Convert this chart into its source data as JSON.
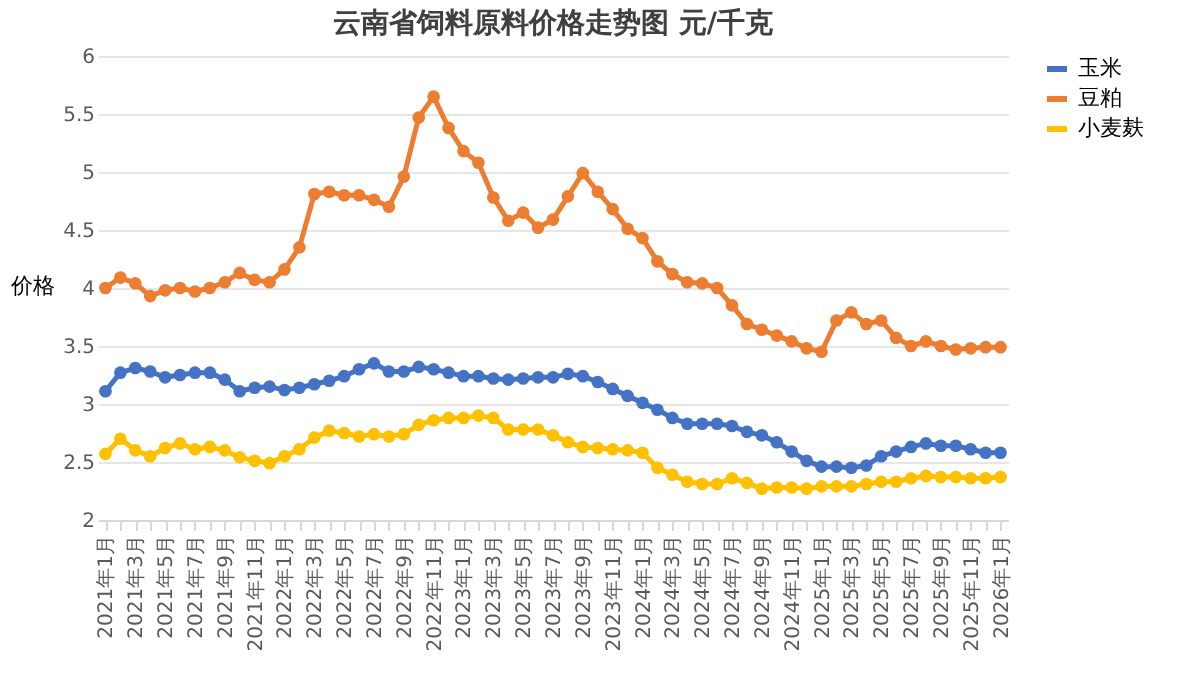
{
  "chart_data": {
    "type": "line",
    "title": "云南省饲料原料价格走势图    元/千克",
    "ylabel": "价格",
    "categories": [
      "2021年1月",
      null,
      "2021年3月",
      null,
      "2021年5月",
      null,
      "2021年7月",
      null,
      "2021年9月",
      null,
      "2021年11月",
      null,
      "2022年1月",
      null,
      "2022年3月",
      null,
      "2022年5月",
      null,
      "2022年7月",
      null,
      "2022年9月",
      null,
      "2022年11月",
      null,
      "2023年1月",
      null,
      "2023年3月",
      null,
      "2023年5月",
      null,
      "2023年7月",
      null,
      "2023年9月",
      null,
      "2023年11月",
      null,
      "2024年1月",
      null,
      "2024年3月",
      null,
      "2024年5月",
      null,
      "2024年7月",
      null,
      "2024年9月",
      null,
      "2024年11月",
      null,
      "2025年1月",
      null,
      "2025年3月",
      null,
      "2025年5月",
      null,
      "2025年7月",
      null,
      "2025年9月",
      null,
      "2025年11月",
      null,
      "2026年1月"
    ],
    "series": [
      {
        "name": "玉米",
        "color": "#4472c4",
        "values": [
          3.11,
          3.27,
          3.31,
          3.28,
          3.23,
          3.25,
          3.27,
          3.27,
          3.21,
          3.11,
          3.14,
          3.15,
          3.12,
          3.14,
          3.17,
          3.2,
          3.24,
          3.3,
          3.35,
          3.28,
          3.28,
          3.32,
          3.3,
          3.27,
          3.24,
          3.24,
          3.22,
          3.21,
          3.22,
          3.23,
          3.23,
          3.26,
          3.24,
          3.19,
          3.13,
          3.07,
          3.01,
          2.95,
          2.88,
          2.83,
          2.83,
          2.83,
          2.81,
          2.76,
          2.73,
          2.67,
          2.59,
          2.51,
          2.46,
          2.46,
          2.45,
          2.47,
          2.55,
          2.59,
          2.63,
          2.66,
          2.64,
          2.64,
          2.61,
          2.58,
          2.58
        ]
      },
      {
        "name": "豆粕",
        "color": "#ed7d31",
        "values": [
          4.0,
          4.09,
          4.04,
          3.93,
          3.98,
          4.0,
          3.97,
          4.0,
          4.05,
          4.13,
          4.07,
          4.05,
          4.16,
          4.35,
          4.81,
          4.83,
          4.8,
          4.8,
          4.76,
          4.7,
          4.96,
          5.47,
          5.65,
          5.38,
          5.18,
          5.08,
          4.78,
          4.58,
          4.65,
          4.52,
          4.59,
          4.79,
          4.99,
          4.83,
          4.68,
          4.51,
          4.43,
          4.23,
          4.12,
          4.05,
          4.04,
          4.0,
          3.85,
          3.69,
          3.64,
          3.59,
          3.54,
          3.48,
          3.45,
          3.72,
          3.79,
          3.69,
          3.72,
          3.57,
          3.5,
          3.54,
          3.5,
          3.47,
          3.48,
          3.49,
          3.49
        ]
      },
      {
        "name": "小麦麸",
        "color": "#ffc000",
        "values": [
          2.57,
          2.7,
          2.6,
          2.55,
          2.62,
          2.66,
          2.61,
          2.63,
          2.6,
          2.54,
          2.51,
          2.49,
          2.55,
          2.61,
          2.71,
          2.77,
          2.75,
          2.72,
          2.74,
          2.72,
          2.74,
          2.82,
          2.86,
          2.88,
          2.88,
          2.9,
          2.88,
          2.78,
          2.78,
          2.78,
          2.73,
          2.67,
          2.63,
          2.62,
          2.61,
          2.6,
          2.58,
          2.45,
          2.39,
          2.33,
          2.31,
          2.31,
          2.36,
          2.32,
          2.27,
          2.28,
          2.28,
          2.27,
          2.29,
          2.29,
          2.29,
          2.31,
          2.33,
          2.33,
          2.36,
          2.38,
          2.37,
          2.37,
          2.36,
          2.36,
          2.37
        ]
      }
    ],
    "ylim": [
      2,
      6
    ],
    "yticks": [
      2,
      2.5,
      3,
      3.5,
      4,
      4.5,
      5,
      5.5,
      6
    ],
    "grid": "y",
    "legend": "right",
    "marker": "circle",
    "line_style": "solid"
  }
}
